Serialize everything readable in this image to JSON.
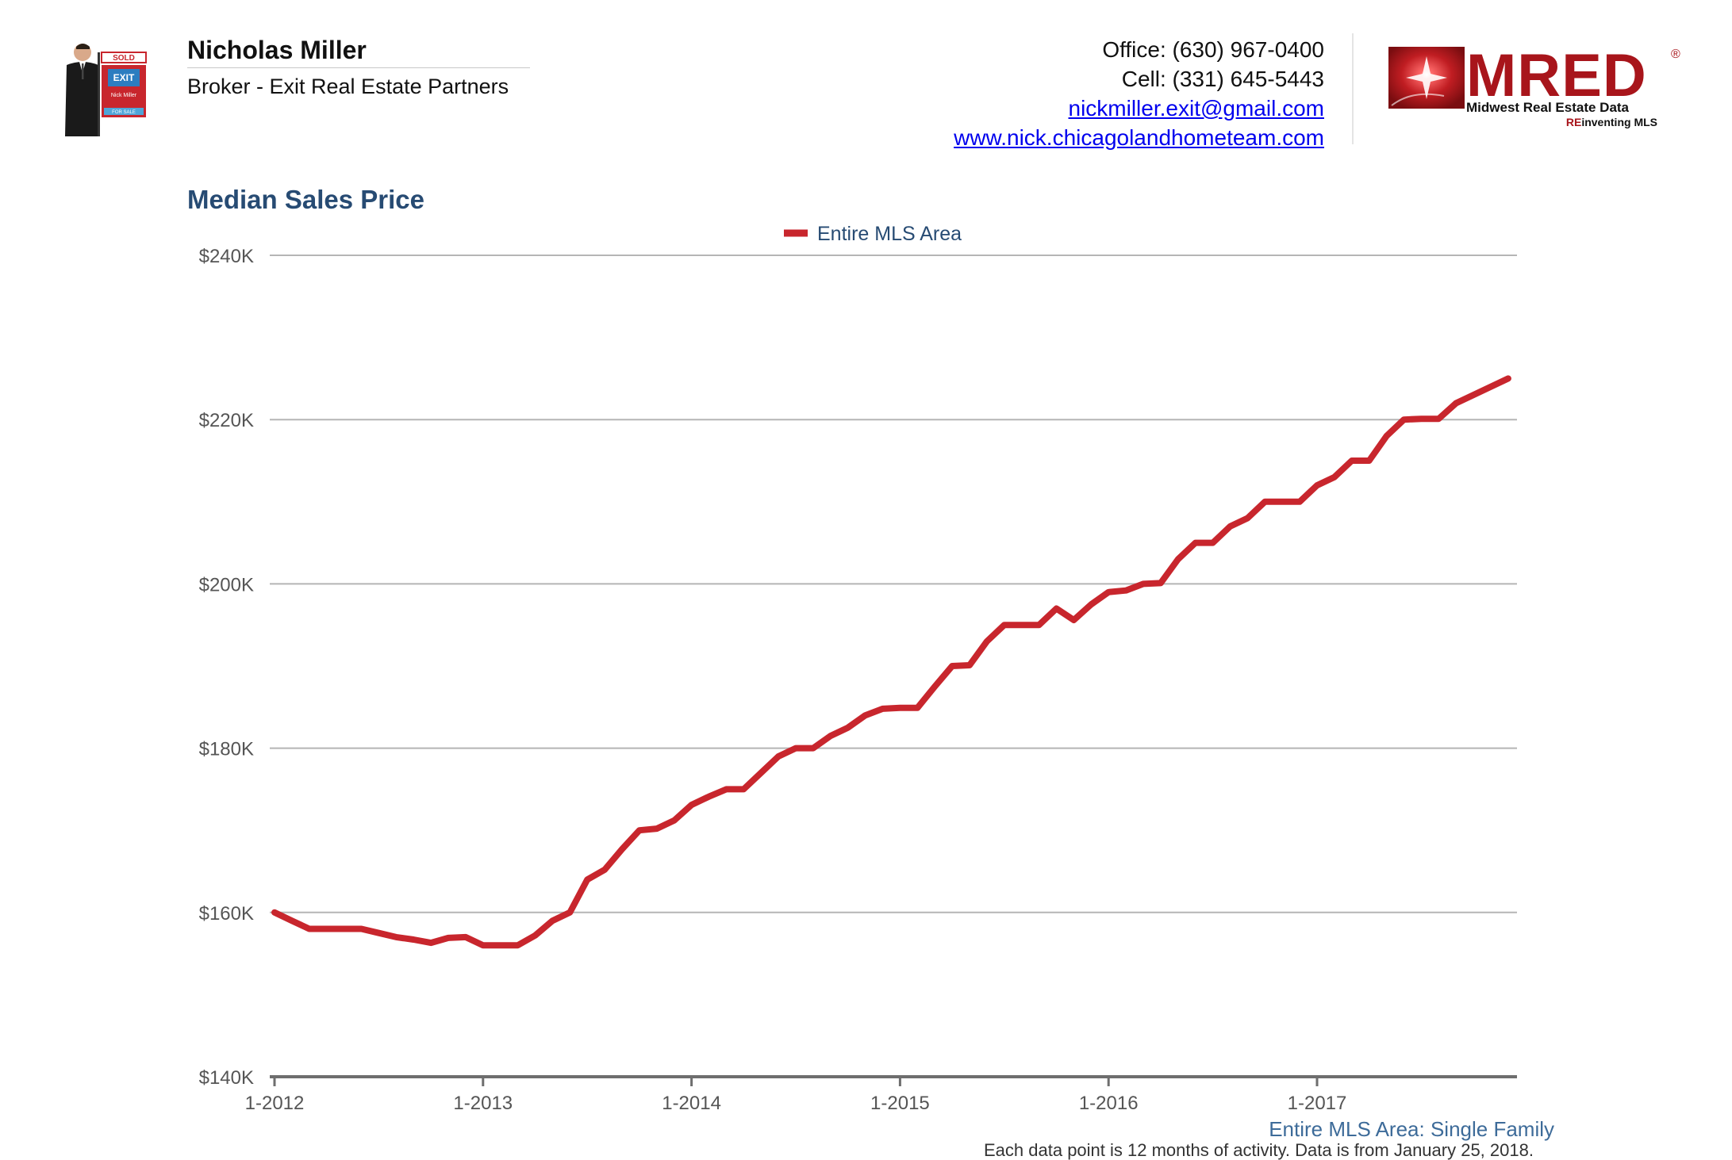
{
  "agent": {
    "name": "Nicholas Miller",
    "title": "Broker - Exit Real Estate Partners",
    "sign_sold": "SOLD",
    "sign_brand": "EXIT",
    "sign_name": "Nick Miller",
    "sign_for_sale": "FOR SALE"
  },
  "contact": {
    "office": "Office: (630) 967-0400",
    "cell": "Cell: (331) 645-5443",
    "email": "nickmiller.exit@gmail.com",
    "website": "www.nick.chicagolandhometeam.com"
  },
  "logo": {
    "wordmark": "MRED",
    "registered": "®",
    "tagline": "Midwest Real Estate Data",
    "sub_prefix": "RE",
    "sub_rest": "inventing MLS"
  },
  "colors": {
    "series": "#c8262d",
    "heading": "#274b73",
    "link": "#0000ee",
    "logo_red": "#a8151b"
  },
  "chart_heading": "Median Sales Price",
  "chart_data": {
    "type": "line",
    "ylim": [
      140000,
      240000
    ],
    "yticks": [
      140000,
      160000,
      180000,
      200000,
      220000,
      240000
    ],
    "ytick_labels": [
      "$140K",
      "$160K",
      "$180K",
      "$200K",
      "$220K",
      "$240K"
    ],
    "xticks": [
      "1-2012",
      "1-2013",
      "1-2014",
      "1-2015",
      "1-2016",
      "1-2017"
    ],
    "x_start": "1-2012",
    "x_step": "1 month",
    "grid": true,
    "legend": "top-center",
    "series": [
      {
        "name": "Entire MLS Area",
        "values": [
          160000,
          159000,
          158000,
          158000,
          158000,
          158000,
          157500,
          157000,
          156700,
          156300,
          156900,
          157000,
          156000,
          156000,
          156000,
          157200,
          159000,
          160000,
          164000,
          165200,
          167700,
          170000,
          170200,
          171200,
          173100,
          174100,
          175000,
          175000,
          177000,
          179000,
          180000,
          180000,
          181500,
          182500,
          184000,
          184800,
          184900,
          184900,
          187500,
          190000,
          190100,
          193000,
          195000,
          195000,
          195000,
          197000,
          195600,
          197500,
          199000,
          199200,
          200000,
          200100,
          203000,
          205000,
          205000,
          207000,
          208000,
          210000,
          210000,
          210000,
          212000,
          213000,
          215000,
          215000,
          218000,
          220000,
          220100,
          220100,
          222000,
          223000,
          224000,
          225000
        ]
      }
    ]
  },
  "footnote": "Entire MLS Area: Single Family",
  "footnote2": "Each data point is 12 months of activity. Data is from January 25, 2018."
}
